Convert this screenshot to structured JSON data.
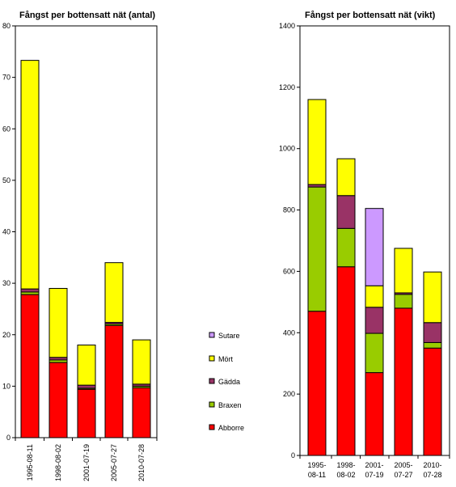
{
  "chart_data": [
    {
      "type": "bar",
      "stacked": true,
      "title": "Fångst per bottensatt nät (antal)",
      "categories": [
        "1995-08-11",
        "1998-08-02",
        "2001-07-19",
        "2005-07-27",
        "2010-07-28"
      ],
      "category_label_orientation": "vertical",
      "ylim": [
        0,
        80
      ],
      "yticks": [
        0,
        10,
        20,
        30,
        40,
        50,
        60,
        70,
        80
      ],
      "series": [
        {
          "name": "Abborre",
          "color": "#ff0000",
          "values": [
            27.8,
            14.6,
            9.4,
            21.8,
            9.7
          ]
        },
        {
          "name": "Braxen",
          "color": "#99cc00",
          "values": [
            0.5,
            0.5,
            0.2,
            0.3,
            0.3
          ]
        },
        {
          "name": "Gädda",
          "color": "#993366",
          "values": [
            0.6,
            0.5,
            0.6,
            0.3,
            0.4
          ]
        },
        {
          "name": "Mört",
          "color": "#ffff00",
          "values": [
            44.4,
            13.4,
            7.8,
            11.6,
            8.6
          ]
        },
        {
          "name": "Sutare",
          "color": "#cc99ff",
          "values": [
            0,
            0,
            0,
            0,
            0
          ]
        }
      ]
    },
    {
      "type": "bar",
      "stacked": true,
      "title": "Fångst per bottensatt nät (vikt)",
      "categories": [
        "1995-08-11",
        "1998-08-02",
        "2001-07-19",
        "2005-07-27",
        "2010-07-28"
      ],
      "category_label_orientation": "wrapped",
      "ylim": [
        0,
        1400
      ],
      "yticks": [
        0,
        200,
        400,
        600,
        800,
        1000,
        1200,
        1400
      ],
      "series": [
        {
          "name": "Abborre",
          "color": "#ff0000",
          "values": [
            470,
            615,
            270,
            480,
            350
          ]
        },
        {
          "name": "Braxen",
          "color": "#99cc00",
          "values": [
            405,
            125,
            128,
            45,
            18
          ]
        },
        {
          "name": "Gädda",
          "color": "#993366",
          "values": [
            8,
            107,
            85,
            5,
            65
          ]
        },
        {
          "name": "Mört",
          "color": "#ffff00",
          "values": [
            277,
            120,
            70,
            145,
            165
          ]
        },
        {
          "name": "Sutare",
          "color": "#cc99ff",
          "values": [
            0,
            0,
            252,
            0,
            0
          ]
        }
      ]
    }
  ],
  "legend": {
    "placement": "between-charts",
    "items": [
      {
        "name": "Sutare",
        "color": "#cc99ff"
      },
      {
        "name": "Mört",
        "color": "#ffff00"
      },
      {
        "name": "Gädda",
        "color": "#993366"
      },
      {
        "name": "Braxen",
        "color": "#99cc00"
      },
      {
        "name": "Abborre",
        "color": "#ff0000"
      }
    ]
  }
}
